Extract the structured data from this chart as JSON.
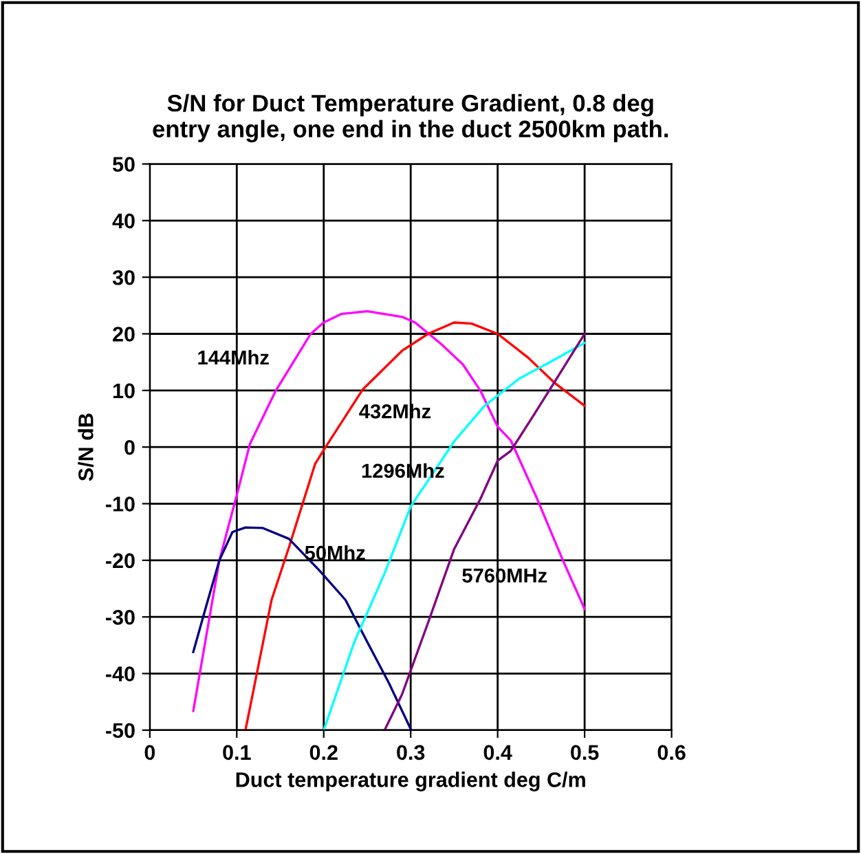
{
  "chart_data": {
    "type": "line",
    "title": "S/N for Duct Temperature Gradient, 0.8 deg\nentry angle, one end in the duct 2500km path.",
    "xlabel": "Duct temperature gradient deg C/m",
    "ylabel": "S/N dB",
    "xlim": [
      0,
      0.6
    ],
    "xticks": [
      0,
      0.1,
      0.2,
      0.3,
      0.4,
      0.5,
      0.6
    ],
    "ylim": [
      -50,
      50
    ],
    "yticks": [
      -50,
      -40,
      -30,
      -20,
      -10,
      0,
      10,
      20,
      30,
      40,
      50
    ],
    "grid": true,
    "marker": "none",
    "line_style": "solid",
    "series": [
      {
        "name": "144Mhz",
        "color": "#ff00ff",
        "x": [
          0.05,
          0.08,
          0.1,
          0.115,
          0.145,
          0.185,
          0.2,
          0.22,
          0.25,
          0.29,
          0.305,
          0.335,
          0.36,
          0.38,
          0.4,
          0.415,
          0.445,
          0.475,
          0.5
        ],
        "values": [
          -46.6,
          -20,
          -8.5,
          0.5,
          10,
          20,
          22,
          23.5,
          24,
          23,
          22,
          18.2,
          14.6,
          10,
          3.6,
          1.2,
          -9,
          -20,
          -28.6
        ]
      },
      {
        "name": "432Mhz",
        "color": "#ff0000",
        "x": [
          0.11,
          0.14,
          0.16,
          0.19,
          0.2,
          0.245,
          0.29,
          0.32,
          0.35,
          0.37,
          0.4,
          0.435,
          0.465,
          0.5
        ],
        "values": [
          -50,
          -27,
          -17.7,
          -3,
          -0.5,
          10.2,
          17,
          20,
          22,
          21.8,
          20,
          15.8,
          11.4,
          7.3
        ]
      },
      {
        "name": "50Mhz",
        "color": "#000080",
        "x": [
          0.05,
          0.065,
          0.08,
          0.095,
          0.11,
          0.13,
          0.16,
          0.195,
          0.225,
          0.25,
          0.275,
          0.3
        ],
        "values": [
          -36.2,
          -28,
          -20,
          -15,
          -14.2,
          -14.3,
          -16.2,
          -21.8,
          -27,
          -34.4,
          -41.7,
          -49.8
        ]
      },
      {
        "name": "1296Mhz",
        "color": "#00ffff",
        "x": [
          0.2,
          0.235,
          0.27,
          0.3,
          0.35,
          0.385,
          0.425,
          0.46,
          0.5
        ],
        "values": [
          -50,
          -34.5,
          -22.3,
          -10.5,
          1,
          7.3,
          12.1,
          15,
          18.4
        ]
      },
      {
        "name": "5760MHz",
        "color": "#800080",
        "x": [
          0.27,
          0.29,
          0.32,
          0.35,
          0.38,
          0.4,
          0.415,
          0.44,
          0.465,
          0.5
        ],
        "values": [
          -50,
          -43.7,
          -31,
          -18,
          -9.2,
          -2.4,
          -0.7,
          5.3,
          11.4,
          20
        ]
      }
    ]
  }
}
